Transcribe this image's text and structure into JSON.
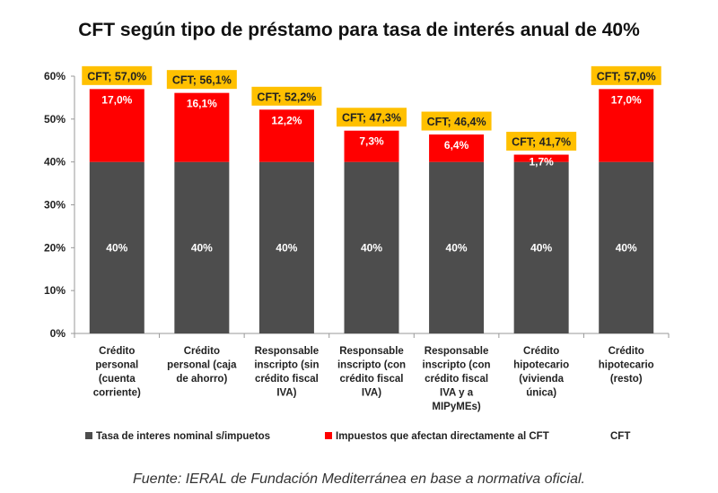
{
  "chart_data": {
    "type": "bar",
    "stacked": true,
    "title": "CFT según tipo de préstamo para tasa de interés anual de 40%",
    "categories": [
      [
        "Crédito",
        "personal",
        "(cuenta",
        "corriente)"
      ],
      [
        "Crédito",
        "personal (caja",
        "de ahorro)"
      ],
      [
        "Responsable",
        "inscripto (sin",
        "crédito fiscal",
        "IVA)"
      ],
      [
        "Responsable",
        "inscripto (con",
        "crédito fiscal",
        "IVA)"
      ],
      [
        "Responsable",
        "inscripto (con",
        "crédito fiscal",
        "IVA y a",
        "MIPyMEs)"
      ],
      [
        "Crédito",
        "hipotecario",
        "(vivienda",
        "única)"
      ],
      [
        "Crédito",
        "hipotecario",
        "(resto)"
      ]
    ],
    "series": [
      {
        "name": "Tasa de interes nominal s/impuetos",
        "color": "#4d4d4d",
        "values": [
          40,
          40,
          40,
          40,
          40,
          40,
          40
        ],
        "labels": [
          "40%",
          "40%",
          "40%",
          "40%",
          "40%",
          "40%",
          "40%"
        ]
      },
      {
        "name": "Impuestos que afectan directamente al CFT",
        "color": "#ff0000",
        "values": [
          17.0,
          16.1,
          12.2,
          7.3,
          6.4,
          1.7,
          17.0
        ],
        "labels": [
          "17,0%",
          "16,1%",
          "12,2%",
          "7,3%",
          "6,4%",
          "1,7%",
          "17,0%"
        ]
      },
      {
        "name": "CFT",
        "color": "#ffc000",
        "values": [
          57.0,
          56.1,
          52.2,
          47.3,
          46.4,
          41.7,
          57.0
        ],
        "labels": [
          "CFT; 57,0%",
          "CFT; 56,1%",
          "CFT; 52,2%",
          "CFT; 47,3%",
          "CFT; 46,4%",
          "CFT; 41,7%",
          "CFT; 57,0%"
        ]
      }
    ],
    "xlabel": "",
    "ylabel": "",
    "ylim": [
      0,
      60
    ],
    "yticks": [
      "0%",
      "10%",
      "20%",
      "30%",
      "40%",
      "50%",
      "60%"
    ],
    "grid": false,
    "legend": "bottom"
  },
  "source": "Fuente: IERAL de Fundación Mediterránea en base a normativa oficial."
}
